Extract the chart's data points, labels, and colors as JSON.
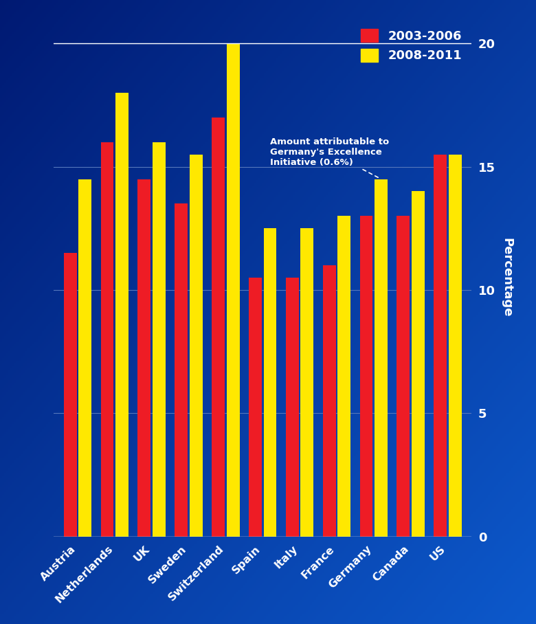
{
  "categories": [
    "Austria",
    "Netherlands",
    "UK",
    "Sweden",
    "Switzerland",
    "Spain",
    "Italy",
    "France",
    "Germany",
    "Canada",
    "US"
  ],
  "red_values": [
    11.5,
    16.0,
    14.5,
    13.5,
    17.0,
    10.5,
    10.5,
    11.0,
    13.0,
    13.0,
    15.5
  ],
  "yellow_values": [
    14.5,
    18.0,
    16.0,
    15.5,
    20.0,
    12.5,
    12.5,
    13.0,
    14.5,
    14.0,
    15.5
  ],
  "red_color": "#EE1C25",
  "yellow_color": "#FFE800",
  "bg_color": "#003A9B",
  "grid_color": "#5577BB",
  "text_color": "#ffffff",
  "legend_label_red": "2003-2006",
  "legend_label_yellow": "2008-2011",
  "ylabel": "Percentage",
  "ylim": [
    0,
    21
  ],
  "yticks": [
    0,
    5,
    10,
    15,
    20
  ],
  "annotation_text": "Amount attributable to\nGermany's Excellence\nInitiative (0.6%)",
  "bar_width": 0.35,
  "bar_gap": 0.05
}
